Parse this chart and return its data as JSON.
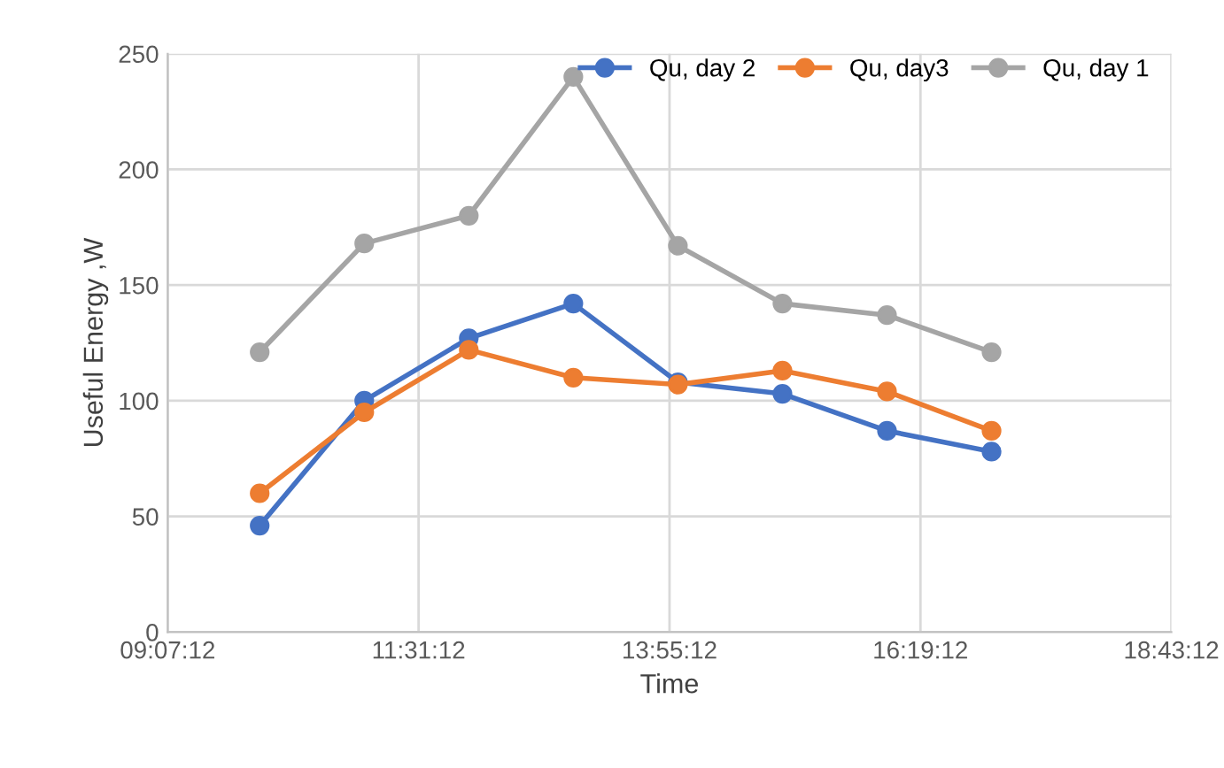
{
  "chart_data": {
    "type": "line",
    "xlabel": "Time",
    "ylabel": "Useful Energy ,W",
    "x": [
      10,
      11,
      12,
      13,
      14,
      15,
      16,
      17
    ],
    "series": [
      {
        "name": "Qu, day 2",
        "color": "#4472c4",
        "values": [
          46,
          100,
          127,
          142,
          108,
          103,
          87,
          78
        ]
      },
      {
        "name": "Qu, day3",
        "color": "#ed7d31",
        "values": [
          60,
          95,
          122,
          110,
          107,
          113,
          104,
          87
        ]
      },
      {
        "name": "Qu, day 1",
        "color": "#a5a5a5",
        "values": [
          121,
          168,
          180,
          240,
          167,
          142,
          137,
          121
        ]
      }
    ],
    "xlim": [
      9.12,
      18.72
    ],
    "xticks": [
      {
        "value": 9.12,
        "label": "09:07:12"
      },
      {
        "value": 11.52,
        "label": "11:31:12"
      },
      {
        "value": 13.92,
        "label": "13:55:12"
      },
      {
        "value": 16.32,
        "label": "16:19:12"
      },
      {
        "value": 18.72,
        "label": "18:43:12"
      }
    ],
    "ylim": [
      0,
      250
    ],
    "yticks": [
      0,
      50,
      100,
      150,
      200,
      250
    ],
    "grid": true,
    "legend": "top right",
    "marker": "circle",
    "line_style": "solid"
  }
}
